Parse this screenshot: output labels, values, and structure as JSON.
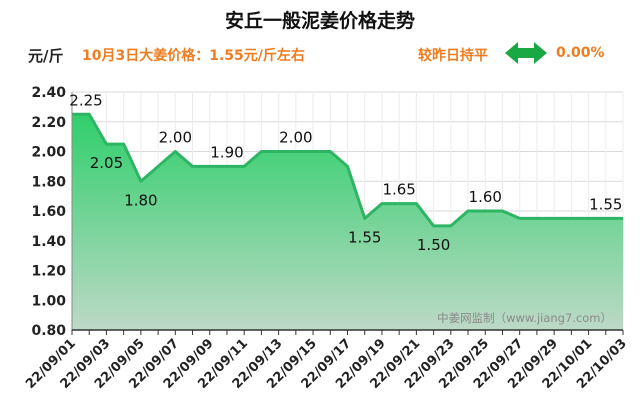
{
  "title": "安丘一般泥姜价格走势",
  "unit": "元/斤",
  "price_note": "10月3日大姜价格：1.55元/斤左右",
  "change": {
    "label": "较昨日持平",
    "value": "0.00%",
    "icon": "left-right-arrow-icon",
    "icon_color": "#19a843"
  },
  "watermark": "中姜网监制（www.jiang7.com）",
  "colors": {
    "line": "#2db564",
    "fill_top": "#2fcf6b",
    "fill_bottom": "#bdd9c6",
    "accent": "#ee7d22"
  },
  "chart_data": {
    "type": "area",
    "title": "安丘一般泥姜价格走势",
    "ylabel": "元/斤",
    "ylim": [
      0.8,
      2.4
    ],
    "yticks": [
      "0.80",
      "1.00",
      "1.20",
      "1.40",
      "1.60",
      "1.80",
      "2.00",
      "2.20",
      "2.40"
    ],
    "grid": true,
    "x": [
      "22/09/01",
      "22/09/02",
      "22/09/03",
      "22/09/04",
      "22/09/05",
      "22/09/06",
      "22/09/07",
      "22/09/08",
      "22/09/09",
      "22/09/10",
      "22/09/11",
      "22/09/12",
      "22/09/13",
      "22/09/14",
      "22/09/15",
      "22/09/16",
      "22/09/17",
      "22/09/18",
      "22/09/19",
      "22/09/20",
      "22/09/21",
      "22/09/22",
      "22/09/23",
      "22/09/24",
      "22/09/25",
      "22/09/26",
      "22/09/27",
      "22/09/28",
      "22/09/29",
      "22/09/30",
      "22/10/01",
      "22/10/02",
      "22/10/03"
    ],
    "xticks": [
      "22/09/01",
      "22/09/03",
      "22/09/05",
      "22/09/07",
      "22/09/09",
      "22/09/11",
      "22/09/13",
      "22/09/15",
      "22/09/17",
      "22/09/19",
      "22/09/21",
      "22/09/23",
      "22/09/25",
      "22/09/27",
      "22/09/29",
      "22/10/01",
      "22/10/03"
    ],
    "values": [
      2.25,
      2.25,
      2.05,
      2.05,
      1.8,
      1.9,
      2.0,
      1.9,
      1.9,
      1.9,
      1.9,
      2.0,
      2.0,
      2.0,
      2.0,
      2.0,
      1.9,
      1.55,
      1.65,
      1.65,
      1.65,
      1.5,
      1.5,
      1.6,
      1.6,
      1.6,
      1.55,
      1.55,
      1.55,
      1.55,
      1.55,
      1.55,
      1.55
    ],
    "data_labels": [
      {
        "index": 0,
        "text": "2.25"
      },
      {
        "index": 2,
        "text": "2.05"
      },
      {
        "index": 4,
        "text": "1.80"
      },
      {
        "index": 6,
        "text": "2.00"
      },
      {
        "index": 9,
        "text": "1.90"
      },
      {
        "index": 13,
        "text": "2.00"
      },
      {
        "index": 17,
        "text": "1.55"
      },
      {
        "index": 19,
        "text": "1.65"
      },
      {
        "index": 21,
        "text": "1.50"
      },
      {
        "index": 24,
        "text": "1.60"
      },
      {
        "index": 31,
        "text": "1.55"
      }
    ]
  }
}
